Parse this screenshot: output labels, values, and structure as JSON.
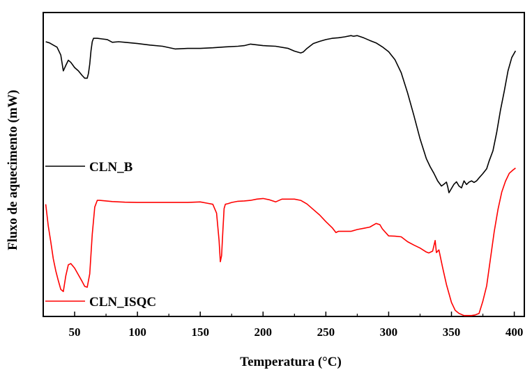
{
  "chart_data": {
    "type": "line",
    "title": "",
    "xlabel": "Temperatura (°C)",
    "ylabel": "Fluxo de aquecimento (mW)",
    "xlim": [
      25,
      408
    ],
    "ylim": [
      0,
      1
    ],
    "xticks": [
      50,
      100,
      150,
      200,
      250,
      300,
      350,
      400
    ],
    "xtick_labels": [
      "50",
      "100",
      "150",
      "200",
      "250",
      "300",
      "350",
      "400"
    ],
    "yticks_shown": false,
    "grid": false,
    "series": [
      {
        "name": "CLN_B",
        "color": "#000000",
        "legend_position": "middle-left",
        "x": [
          27,
          30,
          33,
          36,
          39,
          41,
          43,
          45,
          47,
          50,
          53,
          56,
          58,
          60,
          61,
          62,
          63,
          64,
          65,
          66,
          68,
          72,
          76,
          80,
          85,
          90,
          100,
          110,
          120,
          130,
          140,
          150,
          160,
          170,
          180,
          185,
          190,
          200,
          210,
          220,
          225,
          230,
          232,
          235,
          240,
          245,
          250,
          255,
          260,
          265,
          270,
          272,
          275,
          280,
          285,
          290,
          295,
          300,
          305,
          310,
          315,
          320,
          325,
          330,
          333,
          336,
          339,
          342,
          344,
          346,
          347,
          348,
          350,
          352,
          354,
          356,
          358,
          360,
          362,
          364,
          366,
          368,
          370,
          372,
          375,
          378,
          380,
          383,
          386,
          389,
          392,
          395,
          398,
          401
        ],
        "y": [
          0.904,
          0.9,
          0.893,
          0.886,
          0.86,
          0.808,
          0.826,
          0.843,
          0.836,
          0.819,
          0.808,
          0.793,
          0.784,
          0.784,
          0.8,
          0.83,
          0.874,
          0.904,
          0.915,
          0.915,
          0.915,
          0.913,
          0.911,
          0.902,
          0.904,
          0.902,
          0.898,
          0.893,
          0.889,
          0.88,
          0.882,
          0.882,
          0.884,
          0.887,
          0.889,
          0.891,
          0.896,
          0.891,
          0.889,
          0.882,
          0.873,
          0.867,
          0.87,
          0.882,
          0.898,
          0.905,
          0.911,
          0.915,
          0.917,
          0.92,
          0.924,
          0.922,
          0.924,
          0.917,
          0.908,
          0.9,
          0.887,
          0.871,
          0.845,
          0.802,
          0.736,
          0.662,
          0.584,
          0.519,
          0.493,
          0.471,
          0.446,
          0.429,
          0.435,
          0.442,
          0.427,
          0.407,
          0.421,
          0.435,
          0.443,
          0.429,
          0.423,
          0.446,
          0.434,
          0.442,
          0.446,
          0.441,
          0.446,
          0.456,
          0.47,
          0.486,
          0.512,
          0.545,
          0.606,
          0.679,
          0.741,
          0.808,
          0.852,
          0.874
        ]
      },
      {
        "name": "CLN_ISQC",
        "color": "#ff0000",
        "legend_position": "bottom-left",
        "x": [
          27,
          29,
          31,
          33,
          35,
          37,
          39,
          41,
          43,
          45,
          47,
          50,
          53,
          56,
          58,
          60,
          62,
          64,
          66,
          68,
          70,
          75,
          80,
          90,
          100,
          110,
          120,
          130,
          140,
          150,
          155,
          160,
          163,
          165,
          166,
          167,
          168,
          169,
          170,
          172,
          175,
          180,
          185,
          190,
          195,
          200,
          205,
          210,
          215,
          220,
          225,
          230,
          235,
          240,
          245,
          250,
          255,
          258,
          260,
          265,
          270,
          275,
          280,
          285,
          290,
          293,
          295,
          300,
          305,
          310,
          315,
          320,
          325,
          330,
          332,
          335,
          337,
          338,
          340,
          343,
          346,
          350,
          353,
          356,
          360,
          363,
          366,
          369,
          372,
          375,
          378,
          381,
          384,
          387,
          390,
          393,
          396,
          399,
          401
        ],
        "y": [
          0.369,
          0.298,
          0.246,
          0.19,
          0.15,
          0.118,
          0.089,
          0.082,
          0.134,
          0.17,
          0.174,
          0.159,
          0.137,
          0.115,
          0.099,
          0.096,
          0.14,
          0.27,
          0.36,
          0.382,
          0.382,
          0.38,
          0.378,
          0.376,
          0.375,
          0.375,
          0.375,
          0.375,
          0.375,
          0.377,
          0.373,
          0.369,
          0.34,
          0.25,
          0.18,
          0.2,
          0.28,
          0.355,
          0.369,
          0.371,
          0.375,
          0.379,
          0.38,
          0.382,
          0.386,
          0.388,
          0.384,
          0.377,
          0.386,
          0.386,
          0.386,
          0.382,
          0.37,
          0.352,
          0.334,
          0.312,
          0.292,
          0.276,
          0.28,
          0.28,
          0.28,
          0.286,
          0.29,
          0.294,
          0.306,
          0.302,
          0.288,
          0.265,
          0.264,
          0.262,
          0.246,
          0.235,
          0.225,
          0.212,
          0.209,
          0.215,
          0.25,
          0.21,
          0.219,
          0.16,
          0.105,
          0.046,
          0.02,
          0.01,
          0.003,
          0.003,
          0.003,
          0.005,
          0.01,
          0.05,
          0.101,
          0.19,
          0.279,
          0.352,
          0.409,
          0.445,
          0.471,
          0.482,
          0.488
        ]
      }
    ]
  }
}
